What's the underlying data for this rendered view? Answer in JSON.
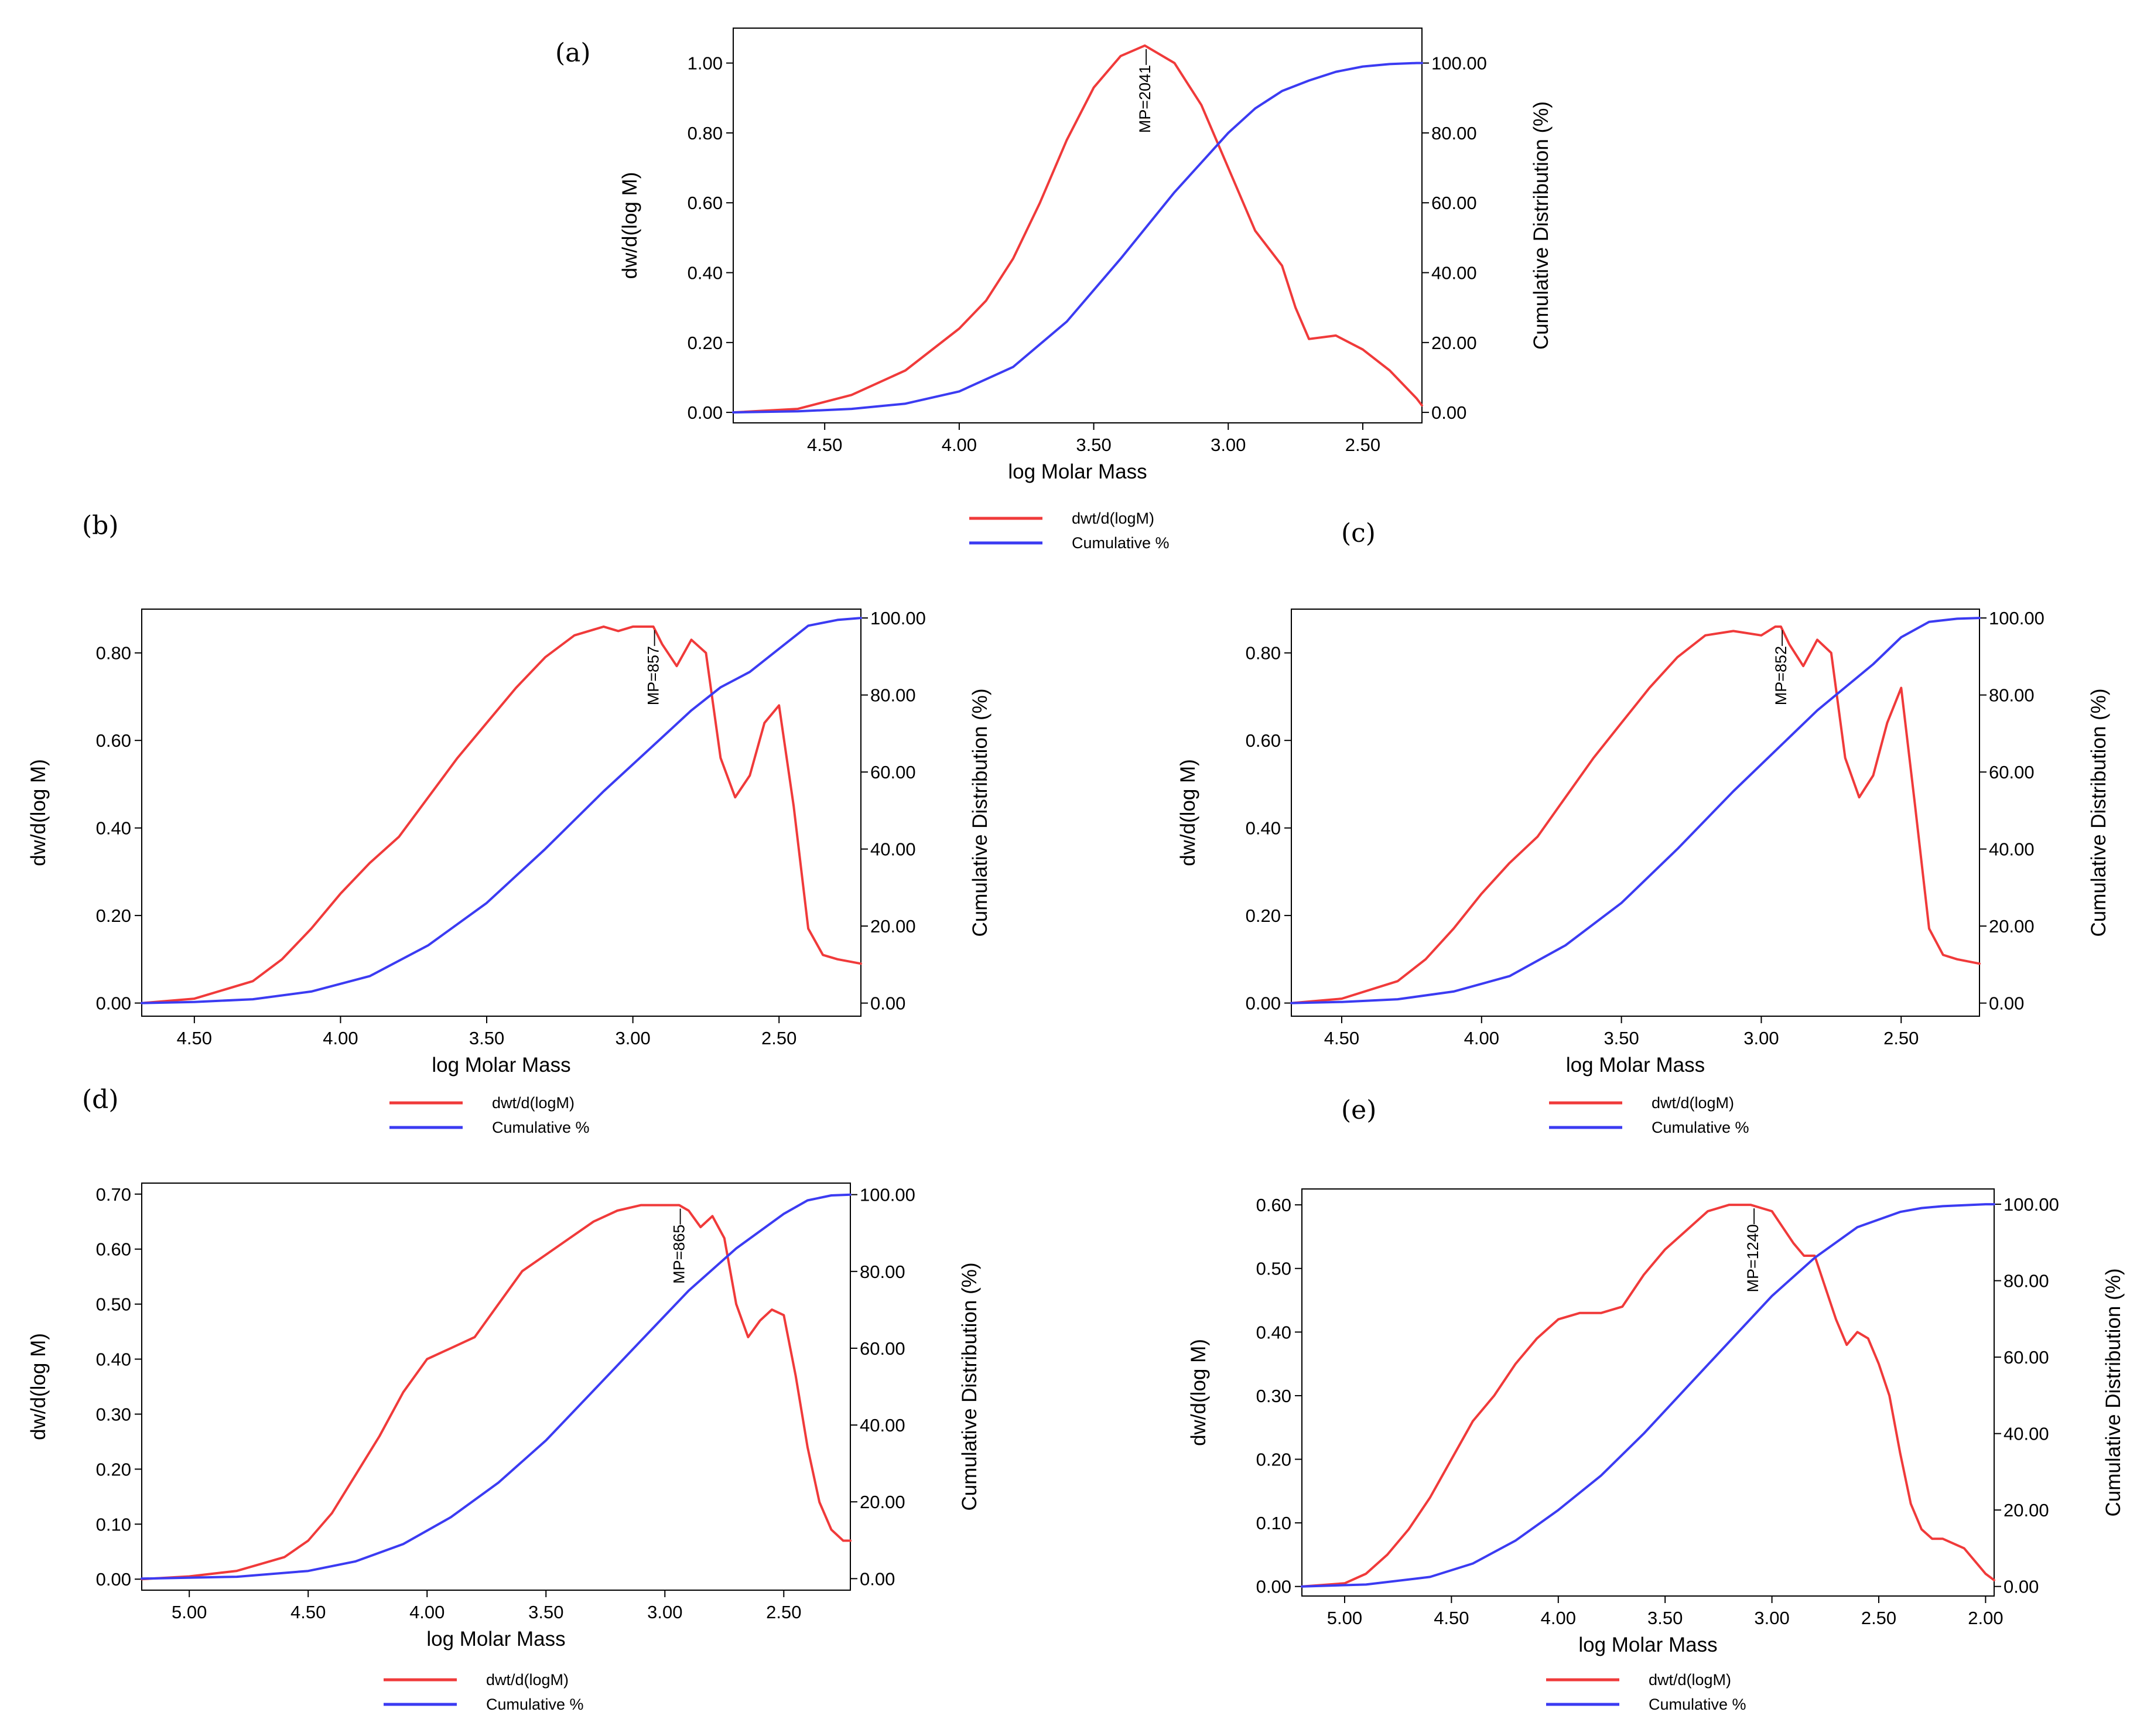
{
  "legend": {
    "red_label": "dwt/d(logM)",
    "blue_label": "Cumulative %"
  },
  "colors": {
    "red": "#f03a3a",
    "blue": "#3b3bf2",
    "axis": "#000000"
  },
  "chart_data": [
    {
      "id": "a",
      "panel_label": "(a)",
      "type": "line",
      "xlabel": "log Molar Mass",
      "ylabel": "dw/d(log M)",
      "y2label": "Cumulative Distribution (%)",
      "xlim": [
        4.84,
        2.28
      ],
      "ylim": [
        -0.03,
        1.1
      ],
      "y2lim": [
        -3.0,
        110.0
      ],
      "xticks": [
        4.5,
        4.0,
        3.5,
        3.0,
        2.5
      ],
      "xtick_labels": [
        "4.50",
        "4.00",
        "3.50",
        "3.00",
        "2.50"
      ],
      "yticks": [
        0,
        0.2,
        0.4,
        0.6,
        0.8,
        1.0
      ],
      "ytick_labels": [
        "0.00",
        "0.20",
        "0.40",
        "0.60",
        "0.80",
        "1.00"
      ],
      "y2ticks": [
        0,
        20,
        40,
        60,
        80,
        100
      ],
      "y2tick_labels": [
        "0.00",
        "20.00",
        "40.00",
        "60.00",
        "80.00",
        "100.00"
      ],
      "mp_label": "MP=2041",
      "mp_x": 3.31,
      "series": [
        {
          "name": "dwt/d(logM)",
          "axis": "left",
          "color": "red",
          "x": [
            4.84,
            4.6,
            4.4,
            4.2,
            4.0,
            3.9,
            3.8,
            3.7,
            3.6,
            3.5,
            3.4,
            3.31,
            3.2,
            3.1,
            3.0,
            2.9,
            2.8,
            2.75,
            2.7,
            2.6,
            2.5,
            2.4,
            2.3,
            2.28
          ],
          "y": [
            0.0,
            0.01,
            0.05,
            0.12,
            0.24,
            0.32,
            0.44,
            0.6,
            0.78,
            0.93,
            1.02,
            1.05,
            1.0,
            0.88,
            0.7,
            0.52,
            0.42,
            0.3,
            0.21,
            0.22,
            0.18,
            0.12,
            0.04,
            0.02
          ]
        },
        {
          "name": "Cumulative %",
          "axis": "right",
          "color": "blue",
          "x": [
            4.84,
            4.6,
            4.4,
            4.2,
            4.0,
            3.8,
            3.6,
            3.4,
            3.2,
            3.0,
            2.9,
            2.8,
            2.7,
            2.6,
            2.5,
            2.4,
            2.3,
            2.28
          ],
          "y": [
            0.0,
            0.3,
            1.0,
            2.5,
            6.0,
            13.0,
            26.0,
            44.0,
            63.0,
            80.0,
            87.0,
            92.0,
            95.0,
            97.5,
            99.0,
            99.7,
            100.0,
            100.0
          ]
        }
      ]
    },
    {
      "id": "b",
      "panel_label": "(b)",
      "type": "line",
      "xlabel": "log Molar Mass",
      "ylabel": "dw/d(log M)",
      "y2label": "Cumulative Distribution (%)",
      "xlim": [
        4.68,
        2.22
      ],
      "ylim": [
        -0.03,
        0.9
      ],
      "y2lim": [
        -3.4,
        102.3
      ],
      "xticks": [
        4.5,
        4.0,
        3.5,
        3.0,
        2.5
      ],
      "xtick_labels": [
        "4.50",
        "4.00",
        "3.50",
        "3.00",
        "2.50"
      ],
      "yticks": [
        0,
        0.2,
        0.4,
        0.6,
        0.8
      ],
      "ytick_labels": [
        "0.00",
        "0.20",
        "0.40",
        "0.60",
        "0.80"
      ],
      "y2ticks": [
        0,
        20,
        40,
        60,
        80,
        100
      ],
      "y2tick_labels": [
        "0.00",
        "20.00",
        "40.00",
        "60.00",
        "80.00",
        "100.00"
      ],
      "mp_label": "MP=857",
      "mp_x": 2.93,
      "series": [
        {
          "name": "dwt/d(logM)",
          "axis": "left",
          "color": "red",
          "x": [
            4.68,
            4.5,
            4.3,
            4.2,
            4.1,
            4.0,
            3.9,
            3.8,
            3.7,
            3.6,
            3.5,
            3.4,
            3.3,
            3.2,
            3.1,
            3.05,
            3.0,
            2.95,
            2.93,
            2.9,
            2.85,
            2.8,
            2.75,
            2.7,
            2.65,
            2.6,
            2.55,
            2.5,
            2.45,
            2.4,
            2.35,
            2.3,
            2.22
          ],
          "y": [
            0.0,
            0.01,
            0.05,
            0.1,
            0.17,
            0.25,
            0.32,
            0.38,
            0.47,
            0.56,
            0.64,
            0.72,
            0.79,
            0.84,
            0.86,
            0.85,
            0.86,
            0.86,
            0.86,
            0.82,
            0.77,
            0.83,
            0.8,
            0.56,
            0.47,
            0.52,
            0.64,
            0.68,
            0.45,
            0.17,
            0.11,
            0.1,
            0.09
          ]
        },
        {
          "name": "Cumulative %",
          "axis": "right",
          "color": "blue",
          "x": [
            4.68,
            4.5,
            4.3,
            4.1,
            3.9,
            3.7,
            3.5,
            3.3,
            3.1,
            2.9,
            2.8,
            2.7,
            2.6,
            2.5,
            2.4,
            2.3,
            2.22
          ],
          "y": [
            0.0,
            0.3,
            1.0,
            3.0,
            7.0,
            15.0,
            26.0,
            40.0,
            55.0,
            69.0,
            76.0,
            82.0,
            86.0,
            92.0,
            98.0,
            99.5,
            100.0
          ]
        }
      ]
    },
    {
      "id": "c",
      "panel_label": "(c)",
      "type": "line",
      "xlabel": "log Molar Mass",
      "ylabel": "dw/d(log M)",
      "y2label": "Cumulative Distribution (%)",
      "xlim": [
        4.68,
        2.22
      ],
      "ylim": [
        -0.03,
        0.9
      ],
      "y2lim": [
        -3.4,
        102.3
      ],
      "xticks": [
        4.5,
        4.0,
        3.5,
        3.0,
        2.5
      ],
      "xtick_labels": [
        "4.50",
        "4.00",
        "3.50",
        "3.00",
        "2.50"
      ],
      "yticks": [
        0,
        0.2,
        0.4,
        0.6,
        0.8
      ],
      "ytick_labels": [
        "0.00",
        "0.20",
        "0.40",
        "0.60",
        "0.80"
      ],
      "y2ticks": [
        0,
        20,
        40,
        60,
        80,
        100
      ],
      "y2tick_labels": [
        "0.00",
        "20.00",
        "40.00",
        "60.00",
        "80.00",
        "100.00"
      ],
      "mp_label": "MP=852",
      "mp_x": 2.93,
      "series": [
        {
          "name": "dwt/d(logM)",
          "axis": "left",
          "color": "red",
          "x": [
            4.68,
            4.5,
            4.3,
            4.2,
            4.1,
            4.0,
            3.9,
            3.8,
            3.7,
            3.6,
            3.5,
            3.4,
            3.3,
            3.2,
            3.1,
            3.0,
            2.95,
            2.93,
            2.9,
            2.85,
            2.8,
            2.75,
            2.7,
            2.65,
            2.6,
            2.55,
            2.5,
            2.45,
            2.4,
            2.35,
            2.3,
            2.22
          ],
          "y": [
            0.0,
            0.01,
            0.05,
            0.1,
            0.17,
            0.25,
            0.32,
            0.38,
            0.47,
            0.56,
            0.64,
            0.72,
            0.79,
            0.84,
            0.85,
            0.84,
            0.86,
            0.86,
            0.82,
            0.77,
            0.83,
            0.8,
            0.56,
            0.47,
            0.52,
            0.64,
            0.72,
            0.45,
            0.17,
            0.11,
            0.1,
            0.09
          ]
        },
        {
          "name": "Cumulative %",
          "axis": "right",
          "color": "blue",
          "x": [
            4.68,
            4.5,
            4.3,
            4.1,
            3.9,
            3.7,
            3.5,
            3.3,
            3.1,
            2.9,
            2.8,
            2.7,
            2.6,
            2.5,
            2.4,
            2.3,
            2.22
          ],
          "y": [
            0.0,
            0.3,
            1.0,
            3.0,
            7.0,
            15.0,
            26.0,
            40.0,
            55.0,
            69.0,
            76.0,
            82.0,
            88.0,
            95.0,
            99.0,
            99.8,
            100.0
          ]
        }
      ]
    },
    {
      "id": "d",
      "panel_label": "(d)",
      "type": "line",
      "xlabel": "log Molar Mass",
      "ylabel": "dw/d(log M)",
      "y2label": "Cumulative Distribution (%)",
      "xlim": [
        5.2,
        2.22
      ],
      "ylim": [
        -0.02,
        0.72
      ],
      "y2lim": [
        -3.0,
        103.0
      ],
      "xticks": [
        5.0,
        4.5,
        4.0,
        3.5,
        3.0,
        2.5
      ],
      "xtick_labels": [
        "5.00",
        "4.50",
        "4.00",
        "3.50",
        "3.00",
        "2.50"
      ],
      "yticks": [
        0,
        0.1,
        0.2,
        0.3,
        0.4,
        0.5,
        0.6,
        0.7
      ],
      "ytick_labels": [
        "0.00",
        "0.10",
        "0.20",
        "0.30",
        "0.40",
        "0.50",
        "0.60",
        "0.70"
      ],
      "y2ticks": [
        0,
        20,
        40,
        60,
        80,
        100
      ],
      "y2tick_labels": [
        "0.00",
        "20.00",
        "40.00",
        "60.00",
        "80.00",
        "100.00"
      ],
      "mp_label": "MP=865",
      "mp_x": 2.94,
      "series": [
        {
          "name": "dwt/d(logM)",
          "axis": "left",
          "color": "red",
          "x": [
            5.2,
            5.0,
            4.8,
            4.6,
            4.5,
            4.4,
            4.3,
            4.2,
            4.1,
            4.0,
            3.9,
            3.8,
            3.7,
            3.6,
            3.5,
            3.4,
            3.3,
            3.2,
            3.1,
            3.0,
            2.94,
            2.9,
            2.85,
            2.8,
            2.75,
            2.7,
            2.65,
            2.6,
            2.55,
            2.5,
            2.45,
            2.4,
            2.35,
            2.3,
            2.25,
            2.22
          ],
          "y": [
            0.0,
            0.005,
            0.015,
            0.04,
            0.07,
            0.12,
            0.19,
            0.26,
            0.34,
            0.4,
            0.42,
            0.44,
            0.5,
            0.56,
            0.59,
            0.62,
            0.65,
            0.67,
            0.68,
            0.68,
            0.68,
            0.67,
            0.64,
            0.66,
            0.62,
            0.5,
            0.44,
            0.47,
            0.49,
            0.48,
            0.37,
            0.24,
            0.14,
            0.09,
            0.07,
            0.07
          ]
        },
        {
          "name": "Cumulative %",
          "axis": "right",
          "color": "blue",
          "x": [
            5.2,
            4.8,
            4.5,
            4.3,
            4.1,
            3.9,
            3.7,
            3.5,
            3.3,
            3.1,
            2.9,
            2.7,
            2.5,
            2.4,
            2.3,
            2.22
          ],
          "y": [
            0.0,
            0.5,
            2.0,
            4.5,
            9.0,
            16.0,
            25.0,
            36.0,
            49.0,
            62.0,
            75.0,
            86.0,
            95.0,
            98.5,
            99.8,
            100.0
          ]
        }
      ]
    },
    {
      "id": "e",
      "panel_label": "(e)",
      "type": "line",
      "xlabel": "log Molar Mass",
      "ylabel": "dw/d(log M)",
      "y2label": "Cumulative Distribution (%)",
      "xlim": [
        5.2,
        1.96
      ],
      "ylim": [
        -0.015,
        0.625
      ],
      "y2lim": [
        -2.5,
        104.0
      ],
      "xticks": [
        5.0,
        4.5,
        4.0,
        3.5,
        3.0,
        2.5,
        2.0
      ],
      "xtick_labels": [
        "5.00",
        "4.50",
        "4.00",
        "3.50",
        "3.00",
        "2.50",
        "2.00"
      ],
      "yticks": [
        0,
        0.1,
        0.2,
        0.3,
        0.4,
        0.5,
        0.6
      ],
      "ytick_labels": [
        "0.00",
        "0.10",
        "0.20",
        "0.30",
        "0.40",
        "0.50",
        "0.60"
      ],
      "y2ticks": [
        0,
        20,
        40,
        60,
        80,
        100
      ],
      "y2tick_labels": [
        "0.00",
        "20.00",
        "40.00",
        "60.00",
        "80.00",
        "100.00"
      ],
      "mp_label": "MP=1240",
      "mp_x": 3.09,
      "series": [
        {
          "name": "dwt/d(logM)",
          "axis": "left",
          "color": "red",
          "x": [
            5.2,
            5.0,
            4.9,
            4.8,
            4.7,
            4.6,
            4.5,
            4.4,
            4.3,
            4.2,
            4.1,
            4.0,
            3.9,
            3.8,
            3.7,
            3.6,
            3.5,
            3.4,
            3.3,
            3.2,
            3.1,
            3.0,
            2.9,
            2.85,
            2.8,
            2.7,
            2.65,
            2.6,
            2.55,
            2.5,
            2.45,
            2.4,
            2.35,
            2.3,
            2.25,
            2.2,
            2.1,
            2.0,
            1.96
          ],
          "y": [
            0.0,
            0.005,
            0.02,
            0.05,
            0.09,
            0.14,
            0.2,
            0.26,
            0.3,
            0.35,
            0.39,
            0.42,
            0.43,
            0.43,
            0.44,
            0.49,
            0.53,
            0.56,
            0.59,
            0.6,
            0.6,
            0.59,
            0.54,
            0.52,
            0.52,
            0.42,
            0.38,
            0.4,
            0.39,
            0.35,
            0.3,
            0.21,
            0.13,
            0.09,
            0.075,
            0.075,
            0.06,
            0.02,
            0.01
          ]
        },
        {
          "name": "Cumulative %",
          "axis": "right",
          "color": "blue",
          "x": [
            5.2,
            4.9,
            4.6,
            4.4,
            4.2,
            4.0,
            3.8,
            3.6,
            3.4,
            3.2,
            3.0,
            2.8,
            2.6,
            2.4,
            2.3,
            2.2,
            2.0,
            1.96
          ],
          "y": [
            0.0,
            0.5,
            2.5,
            6.0,
            12.0,
            20.0,
            29.0,
            40.0,
            52.0,
            64.0,
            76.0,
            86.0,
            94.0,
            98.0,
            99.0,
            99.5,
            100.0,
            100.0
          ]
        }
      ]
    }
  ]
}
